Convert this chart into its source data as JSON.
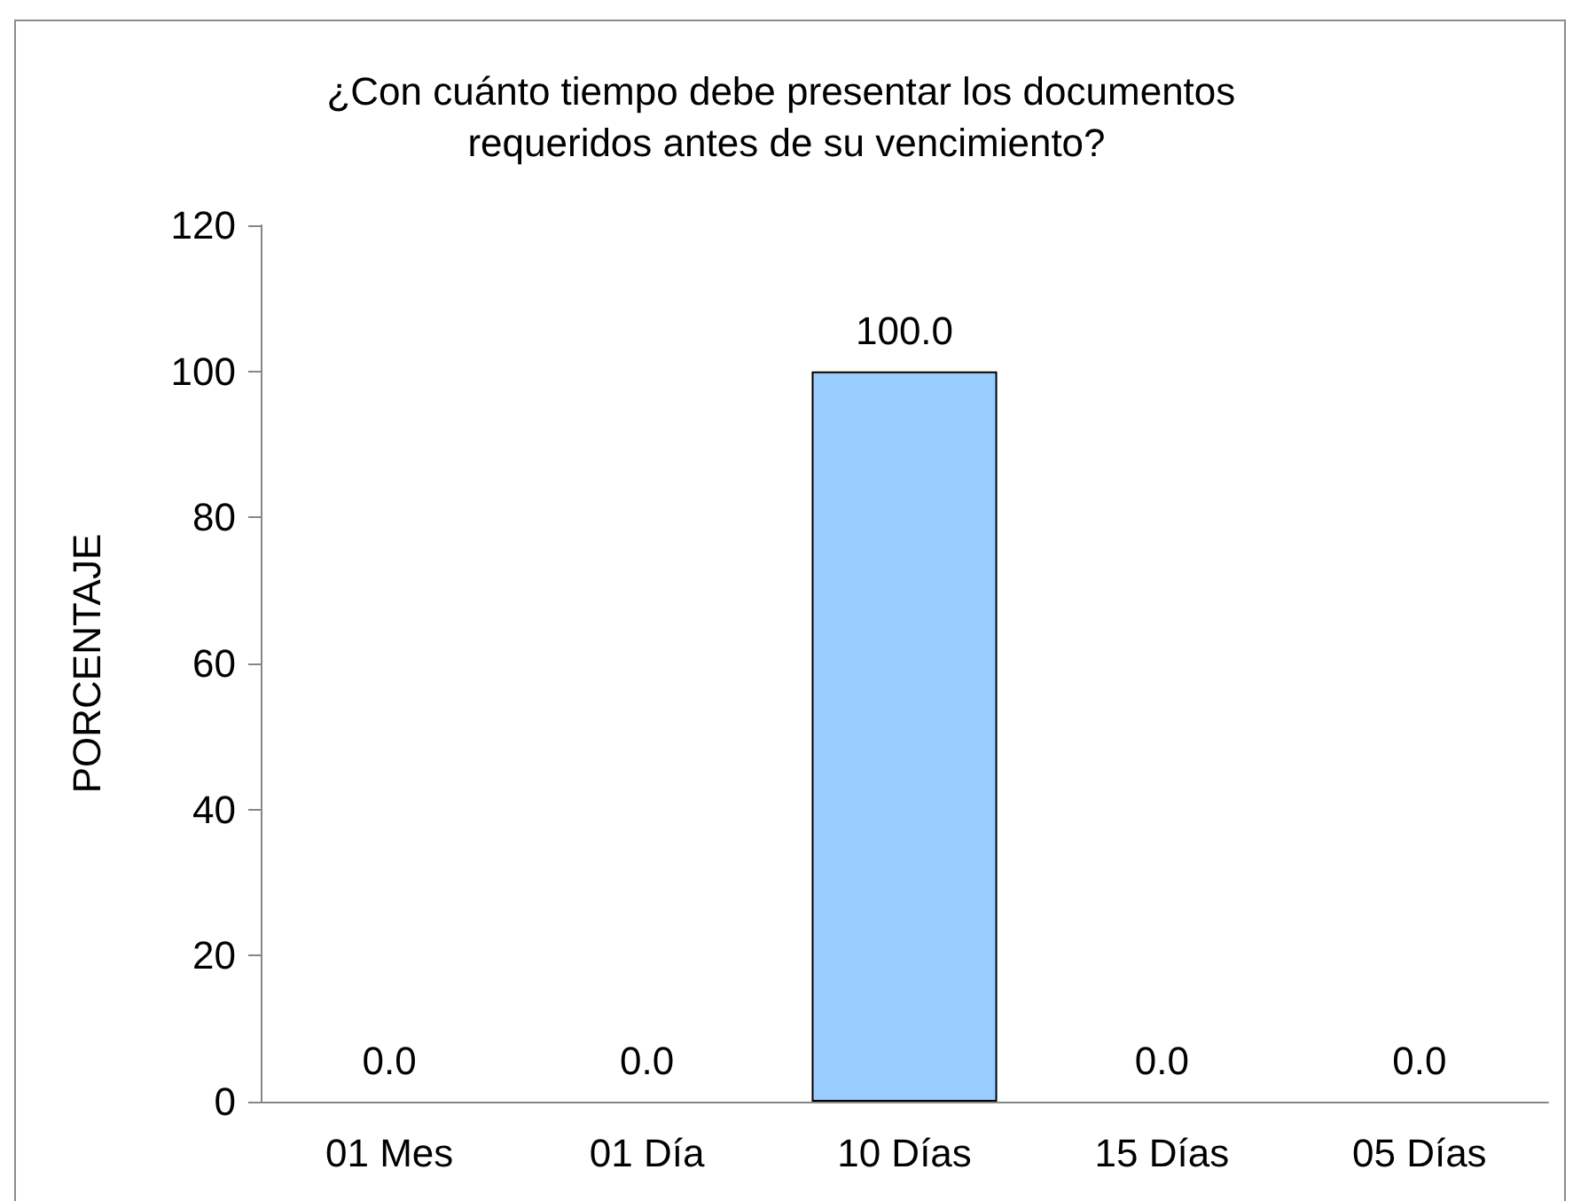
{
  "chart_data": {
    "type": "bar",
    "title": "¿Con cuánto tiempo debe presentar los documentos requeridos antes de su vencimiento?",
    "ylabel": "PORCENTAJE",
    "categories": [
      "01 Mes",
      "01 Día",
      "10 Días",
      "15 Días",
      "05 Días"
    ],
    "values": [
      0,
      0,
      100,
      0,
      0
    ],
    "value_labels": [
      "0.0",
      "0.0",
      "100.0",
      "0.0",
      "0.0"
    ],
    "color": "#99ccff",
    "ylim": [
      0,
      120
    ],
    "yticks": [
      0,
      20,
      40,
      60,
      80,
      100,
      120
    ],
    "grid": false
  }
}
